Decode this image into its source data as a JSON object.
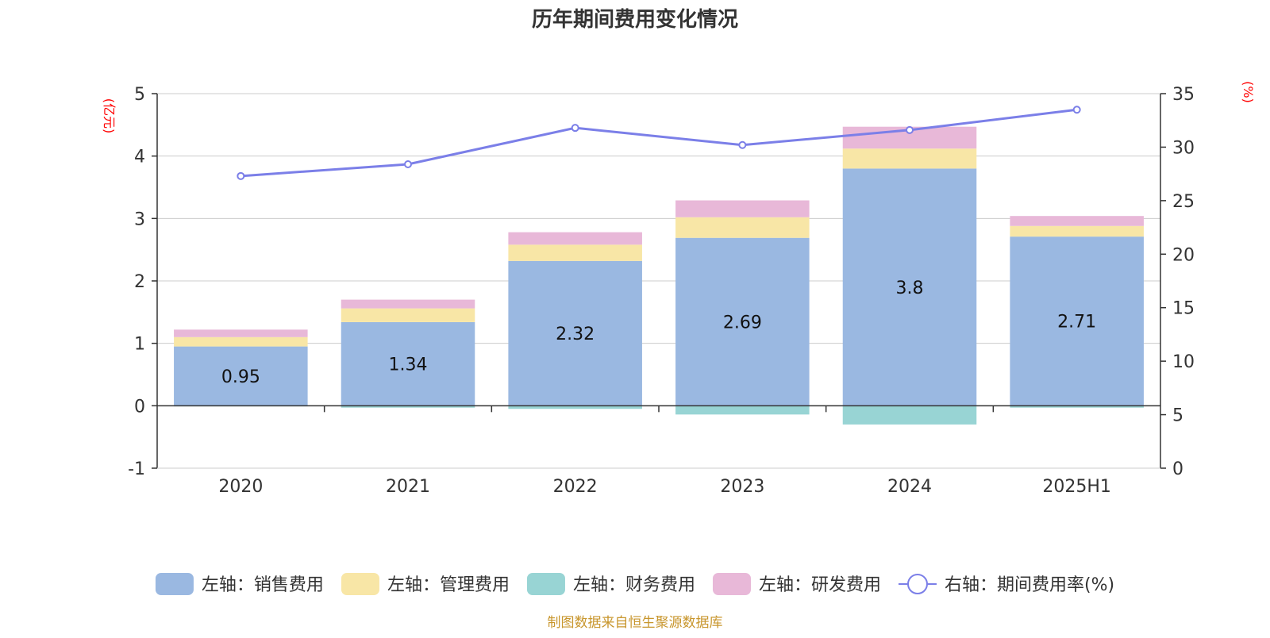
{
  "chart_data": {
    "type": "bar",
    "title": "历年期间费用变化情况",
    "categories": [
      "2020",
      "2021",
      "2022",
      "2023",
      "2024",
      "2025H1"
    ],
    "left_axis": {
      "unit": "(亿元)",
      "ylim": [
        -1,
        5
      ],
      "ticks": [
        -1,
        0,
        1,
        2,
        3,
        4,
        5
      ]
    },
    "right_axis": {
      "unit": "(%)",
      "ylim": [
        0,
        35
      ],
      "ticks": [
        0,
        5,
        10,
        15,
        20,
        25,
        30,
        35
      ]
    },
    "series": [
      {
        "name": "左轴：销售费用",
        "kind": "bar",
        "axis": "left",
        "color": "#9ab8e1",
        "values": [
          0.95,
          1.34,
          2.32,
          2.69,
          3.8,
          2.71
        ],
        "labels": [
          "0.95",
          "1.34",
          "2.32",
          "2.69",
          "3.8",
          "2.71"
        ]
      },
      {
        "name": "左轴：管理费用",
        "kind": "bar",
        "axis": "left",
        "color": "#f8e6a6",
        "values": [
          0.15,
          0.22,
          0.26,
          0.33,
          0.32,
          0.17
        ]
      },
      {
        "name": "左轴：财务费用",
        "kind": "bar",
        "axis": "left",
        "color": "#98d4d4",
        "values": [
          -0.01,
          -0.03,
          -0.05,
          -0.14,
          -0.3,
          -0.03
        ]
      },
      {
        "name": "左轴：研发费用",
        "kind": "bar",
        "axis": "left",
        "color": "#e8b8d8",
        "values": [
          0.12,
          0.14,
          0.2,
          0.27,
          0.35,
          0.16
        ]
      },
      {
        "name": "右轴：期间费用率(%)",
        "kind": "line",
        "axis": "right",
        "color": "#7b7fe8",
        "values": [
          27.3,
          28.4,
          31.8,
          30.2,
          31.6,
          33.5
        ]
      }
    ],
    "grid": true,
    "legend_position": "bottom"
  },
  "source": {
    "text": "制图数据来自恒生聚源数据库",
    "color": "#c8962d"
  }
}
